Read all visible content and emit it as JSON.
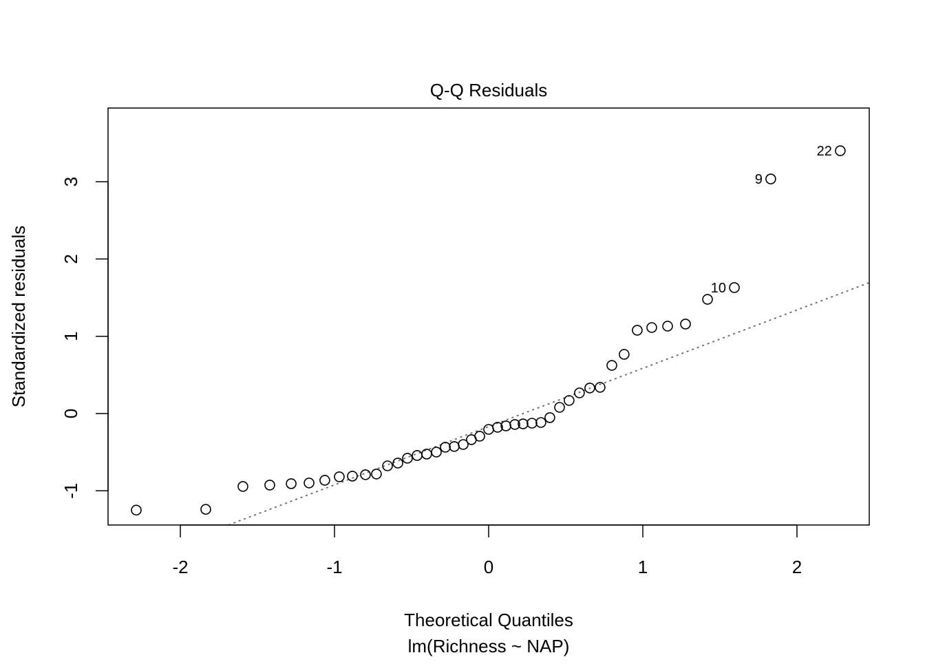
{
  "chart_data": {
    "type": "scatter",
    "title": "Q-Q Residuals",
    "xlabel": "Theoretical Quantiles",
    "subtitle": "lm(Richness ~ NAP)",
    "ylabel": "Standardized residuals",
    "xlim": [
      -2.469,
      2.469
    ],
    "ylim": [
      -1.443,
      3.954
    ],
    "xticks": [
      -2,
      -1,
      0,
      1,
      2
    ],
    "yticks": [
      -1,
      0,
      1,
      2,
      3
    ],
    "grid": false,
    "reference_line": {
      "intercept": -0.169,
      "slope": 0.7545,
      "style": "dotted",
      "color": "#666666"
    },
    "points": [
      [
        -2.286,
        -1.25
      ],
      [
        -1.835,
        -1.24
      ],
      [
        -1.594,
        -0.944
      ],
      [
        -1.42,
        -0.926
      ],
      [
        -1.281,
        -0.908
      ],
      [
        -1.165,
        -0.899
      ],
      [
        -1.063,
        -0.864
      ],
      [
        -0.969,
        -0.819
      ],
      [
        -0.884,
        -0.81
      ],
      [
        -0.799,
        -0.792
      ],
      [
        -0.728,
        -0.783
      ],
      [
        -0.656,
        -0.677
      ],
      [
        -0.589,
        -0.641
      ],
      [
        -0.527,
        -0.579
      ],
      [
        -0.464,
        -0.543
      ],
      [
        -0.402,
        -0.525
      ],
      [
        -0.339,
        -0.499
      ],
      [
        -0.281,
        -0.436
      ],
      [
        -0.223,
        -0.427
      ],
      [
        -0.165,
        -0.401
      ],
      [
        -0.112,
        -0.338
      ],
      [
        -0.058,
        -0.294
      ],
      [
        0.0,
        -0.205
      ],
      [
        0.058,
        -0.178
      ],
      [
        0.112,
        -0.16
      ],
      [
        0.17,
        -0.142
      ],
      [
        0.223,
        -0.134
      ],
      [
        0.281,
        -0.125
      ],
      [
        0.339,
        -0.116
      ],
      [
        0.397,
        -0.053
      ],
      [
        0.46,
        0.08
      ],
      [
        0.522,
        0.169
      ],
      [
        0.589,
        0.267
      ],
      [
        0.656,
        0.33
      ],
      [
        0.723,
        0.339
      ],
      [
        0.799,
        0.623
      ],
      [
        0.879,
        0.766
      ],
      [
        0.964,
        1.078
      ],
      [
        1.058,
        1.113
      ],
      [
        1.161,
        1.131
      ],
      [
        1.277,
        1.158
      ],
      [
        1.42,
        1.478
      ],
      [
        1.594,
        1.63
      ],
      [
        1.83,
        3.036
      ],
      [
        2.281,
        3.401
      ]
    ],
    "annotations": [
      {
        "label": "10",
        "x": 1.594,
        "y": 1.63
      },
      {
        "label": "9",
        "x": 1.83,
        "y": 3.036
      },
      {
        "label": "22",
        "x": 2.281,
        "y": 3.401
      }
    ]
  }
}
